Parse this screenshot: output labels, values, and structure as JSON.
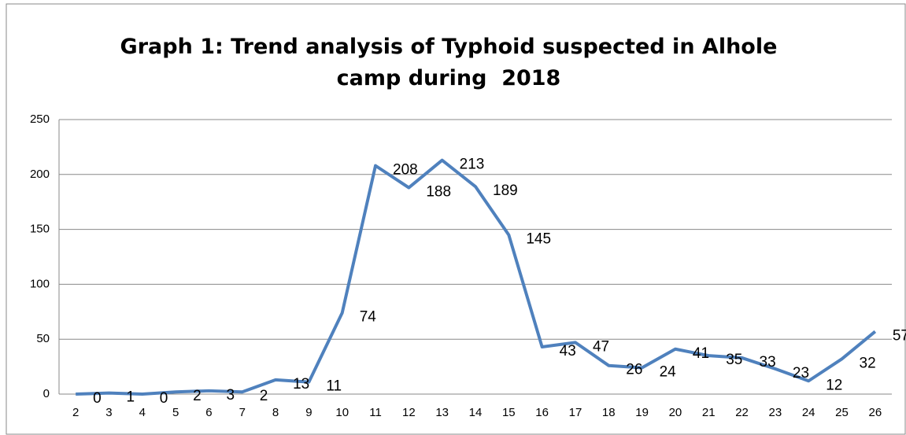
{
  "chart_data": {
    "type": "line",
    "title": "Graph 1: Trend analysis of Typhoid suspected in Alhole camp during  2018",
    "categories": [
      "2",
      "3",
      "4",
      "5",
      "6",
      "7",
      "8",
      "9",
      "10",
      "11",
      "12",
      "13",
      "14",
      "15",
      "16",
      "17",
      "18",
      "19",
      "20",
      "21",
      "22",
      "23",
      "24",
      "25",
      "26"
    ],
    "values": [
      0,
      1,
      0,
      2,
      3,
      2,
      13,
      11,
      74,
      208,
      188,
      213,
      189,
      145,
      43,
      47,
      26,
      24,
      41,
      35,
      33,
      23,
      12,
      32,
      57
    ],
    "color": "#4f81bd",
    "ylim": [
      0,
      250
    ],
    "yticks": [
      0,
      50,
      100,
      150,
      200,
      250
    ],
    "grid": true
  }
}
